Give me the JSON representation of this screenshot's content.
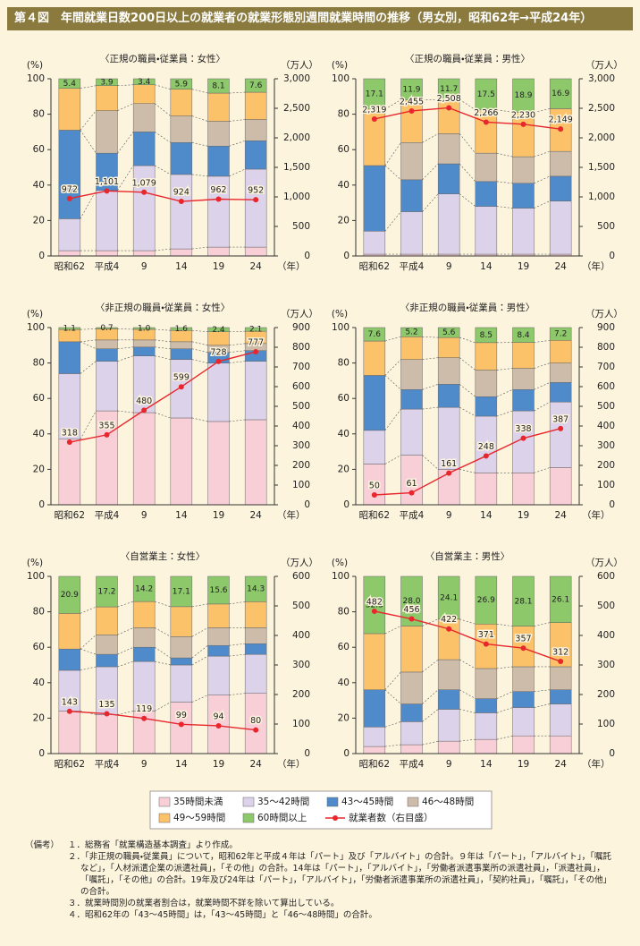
{
  "header": {
    "title": "第４図　年間就業日数200日以上の就業者の就業形態別週間就業時間の推移（男女別，昭和62年→平成24年）"
  },
  "chart_data": [
    {
      "type": "bar",
      "stacked": true,
      "subtitle": "〈正規の職員・従業員：女性〉",
      "y_label": "(%)",
      "y2_label": "（万人）",
      "x_unit": "（年）",
      "categories": [
        "昭和62",
        "平成4",
        "9",
        "14",
        "19",
        "24"
      ],
      "ylim": [
        0,
        100
      ],
      "yticks": [
        0,
        20,
        40,
        60,
        80,
        100
      ],
      "y2lim": [
        0,
        3000
      ],
      "y2ticks": [
        0,
        500,
        {
          "value": 1000,
          "label": "1,000"
        },
        {
          "value": 1500,
          "label": "1,500"
        },
        {
          "value": 2000,
          "label": "2,000"
        },
        {
          "value": 2500,
          "label": "2,500"
        },
        {
          "value": 3000,
          "label": "3,000"
        }
      ],
      "series": [
        {
          "name": "35時間未満",
          "color": "#f9cfd7",
          "values": [
            3,
            3,
            3,
            4,
            5,
            5
          ]
        },
        {
          "name": "35～42時間",
          "color": "#dcd2ea",
          "values": [
            18,
            34,
            48,
            42,
            40,
            44
          ]
        },
        {
          "name": "43～45時間",
          "color": "#4f8bcb",
          "values": [
            50,
            21,
            19,
            18,
            17,
            16
          ]
        },
        {
          "name": "46～48時間",
          "color": "#cdbca9",
          "values": [
            null,
            24,
            16,
            15,
            14,
            12
          ]
        },
        {
          "name": "49～59時間",
          "color": "#fbc26a",
          "values": [
            23.6,
            14.1,
            10.6,
            15.1,
            15.9,
            15.4
          ]
        },
        {
          "name": "60時間以上",
          "color": "#8dc86b",
          "values": [
            5.4,
            3.9,
            3.4,
            5.9,
            8.1,
            7.6
          ],
          "value_labels": [
            "5.4",
            "3.9",
            "3.4",
            "5.9",
            "8.1",
            "7.6"
          ]
        },
        {
          "name": "就業者数（右目盛）",
          "type": "line",
          "axis": "y2",
          "color": "#e8262c",
          "values": [
            972,
            1101,
            1079,
            924,
            962,
            952
          ],
          "value_labels": [
            "972",
            "1,101",
            "1,079",
            "924",
            "962",
            "952"
          ]
        }
      ]
    },
    {
      "type": "bar",
      "stacked": true,
      "subtitle": "〈正規の職員・従業員：男性〉",
      "y_label": "(%)",
      "y2_label": "（万人）",
      "x_unit": "（年）",
      "categories": [
        "昭和62",
        "平成4",
        "9",
        "14",
        "19",
        "24"
      ],
      "ylim": [
        0,
        100
      ],
      "yticks": [
        0,
        20,
        40,
        60,
        80,
        100
      ],
      "y2lim": [
        0,
        3000
      ],
      "y2ticks": [
        0,
        500,
        {
          "value": 1000,
          "label": "1,000"
        },
        {
          "value": 1500,
          "label": "1,500"
        },
        {
          "value": 2000,
          "label": "2,000"
        },
        {
          "value": 2500,
          "label": "2,500"
        },
        {
          "value": 3000,
          "label": "3,000"
        }
      ],
      "series": [
        {
          "name": "35時間未満",
          "color": "#f9cfd7",
          "values": [
            1,
            1,
            1,
            1,
            1,
            1
          ]
        },
        {
          "name": "35～42時間",
          "color": "#dcd2ea",
          "values": [
            13,
            24,
            34,
            27,
            26,
            30
          ]
        },
        {
          "name": "43～45時間",
          "color": "#4f8bcb",
          "values": [
            37,
            18,
            17,
            14,
            14,
            14
          ]
        },
        {
          "name": "46～48時間",
          "color": "#cdbca9",
          "values": [
            null,
            21,
            17,
            16,
            15,
            14
          ]
        },
        {
          "name": "49～59時間",
          "color": "#fbc26a",
          "values": [
            31.9,
            24.1,
            19.3,
            24.5,
            25.1,
            24.1
          ]
        },
        {
          "name": "60時間以上",
          "color": "#8dc86b",
          "values": [
            17.1,
            11.9,
            11.7,
            17.5,
            18.9,
            16.9
          ],
          "value_labels": [
            "17.1",
            "11.9",
            "11.7",
            "17.5",
            "18.9",
            "16.9"
          ]
        },
        {
          "name": "就業者数（右目盛）",
          "type": "line",
          "axis": "y2",
          "color": "#e8262c",
          "values": [
            2319,
            2455,
            2508,
            2266,
            2230,
            2149
          ],
          "value_labels": [
            "2,319",
            "2,455",
            "2,508",
            "2,266",
            "2,230",
            "2,149"
          ]
        }
      ]
    },
    {
      "type": "bar",
      "stacked": true,
      "subtitle": "〈非正規の職員・従業員：女性〉",
      "y_label": "(%)",
      "y2_label": "（万人）",
      "x_unit": "（年）",
      "categories": [
        "昭和62",
        "平成4",
        "9",
        "14",
        "19",
        "24"
      ],
      "ylim": [
        0,
        100
      ],
      "yticks": [
        0,
        20,
        40,
        60,
        80,
        100
      ],
      "y2lim": [
        0,
        900
      ],
      "y2ticks": [
        0,
        100,
        200,
        300,
        400,
        500,
        600,
        700,
        800,
        900
      ],
      "series": [
        {
          "name": "35時間未満",
          "color": "#f9cfd7",
          "values": [
            37,
            53,
            52,
            49,
            47,
            48
          ]
        },
        {
          "name": "35～42時間",
          "color": "#dcd2ea",
          "values": [
            37,
            28,
            32,
            33,
            33,
            33
          ]
        },
        {
          "name": "43～45時間",
          "color": "#4f8bcb",
          "values": [
            18,
            7,
            5,
            6,
            6,
            6
          ]
        },
        {
          "name": "46～48時間",
          "color": "#cdbca9",
          "values": [
            null,
            5,
            4,
            4,
            4,
            4
          ]
        },
        {
          "name": "49～59時間",
          "color": "#fbc26a",
          "values": [
            6.9,
            6.3,
            6,
            6.4,
            7.6,
            6.9
          ]
        },
        {
          "name": "60時間以上",
          "color": "#8dc86b",
          "values": [
            1.1,
            0.7,
            1.0,
            1.6,
            2.4,
            2.1
          ],
          "value_labels": [
            "1.1",
            "0.7",
            "1.0",
            "1.6",
            "2.4",
            "2.1"
          ]
        },
        {
          "name": "就業者数（右目盛）",
          "type": "line",
          "axis": "y2",
          "color": "#e8262c",
          "values": [
            318,
            355,
            480,
            599,
            728,
            777
          ],
          "value_labels": [
            "318",
            "355",
            "480",
            "599",
            "728",
            "777"
          ]
        }
      ]
    },
    {
      "type": "bar",
      "stacked": true,
      "subtitle": "〈非正規の職員・従業員：男性〉",
      "y_label": "(%)",
      "y2_label": "（万人）",
      "x_unit": "（年）",
      "categories": [
        "昭和62",
        "平成4",
        "9",
        "14",
        "19",
        "24"
      ],
      "ylim": [
        0,
        100
      ],
      "yticks": [
        0,
        20,
        40,
        60,
        80,
        100
      ],
      "y2lim": [
        0,
        900
      ],
      "y2ticks": [
        0,
        100,
        200,
        300,
        400,
        500,
        600,
        700,
        800,
        900
      ],
      "series": [
        {
          "name": "35時間未満",
          "color": "#f9cfd7",
          "values": [
            23,
            28,
            20,
            18,
            18,
            21
          ]
        },
        {
          "name": "35～42時間",
          "color": "#dcd2ea",
          "values": [
            19,
            26,
            35,
            32,
            35,
            37
          ]
        },
        {
          "name": "43～45時間",
          "color": "#4f8bcb",
          "values": [
            31,
            11,
            13,
            11,
            12,
            11
          ]
        },
        {
          "name": "46～48時間",
          "color": "#cdbca9",
          "values": [
            null,
            17,
            15,
            15,
            12,
            11
          ]
        },
        {
          "name": "49～59時間",
          "color": "#fbc26a",
          "values": [
            19.4,
            12.8,
            11.4,
            15.5,
            14.6,
            12.8
          ]
        },
        {
          "name": "60時間以上",
          "color": "#8dc86b",
          "values": [
            7.6,
            5.2,
            5.6,
            8.5,
            8.4,
            7.2
          ],
          "value_labels": [
            "7.6",
            "5.2",
            "5.6",
            "8.5",
            "8.4",
            "7.2"
          ]
        },
        {
          "name": "就業者数（右目盛）",
          "type": "line",
          "axis": "y2",
          "color": "#e8262c",
          "values": [
            50,
            61,
            161,
            248,
            338,
            387
          ],
          "value_labels": [
            "50",
            "61",
            "161",
            "248",
            "338",
            "387"
          ]
        }
      ]
    },
    {
      "type": "bar",
      "stacked": true,
      "subtitle": "〈自営業主：女性〉",
      "y_label": "(%)",
      "y2_label": "（万人）",
      "x_unit": "（年）",
      "categories": [
        "昭和62",
        "平成4",
        "9",
        "14",
        "19",
        "24"
      ],
      "ylim": [
        0,
        100
      ],
      "yticks": [
        0,
        20,
        40,
        60,
        80,
        100
      ],
      "y2lim": [
        0,
        600
      ],
      "y2ticks": [
        0,
        100,
        200,
        300,
        400,
        500,
        600
      ],
      "series": [
        {
          "name": "35時間未満",
          "color": "#f9cfd7",
          "values": [
            24,
            22,
            24,
            29,
            33,
            34
          ]
        },
        {
          "name": "35～42時間",
          "color": "#dcd2ea",
          "values": [
            23,
            27,
            28,
            21,
            22,
            22
          ]
        },
        {
          "name": "43～45時間",
          "color": "#4f8bcb",
          "values": [
            12,
            7,
            8,
            4,
            6,
            6
          ]
        },
        {
          "name": "46～48時間",
          "color": "#cdbca9",
          "values": [
            null,
            11,
            11,
            12,
            10,
            9
          ]
        },
        {
          "name": "49～59時間",
          "color": "#fbc26a",
          "values": [
            20.1,
            15.8,
            14.8,
            16.9,
            13.4,
            14.7
          ]
        },
        {
          "name": "60時間以上",
          "color": "#8dc86b",
          "values": [
            20.9,
            17.2,
            14.2,
            17.1,
            15.6,
            14.3
          ],
          "value_labels": [
            "20.9",
            "17.2",
            "14.2",
            "17.1",
            "15.6",
            "14.3"
          ]
        },
        {
          "name": "就業者数（右目盛）",
          "type": "line",
          "axis": "y2",
          "color": "#e8262c",
          "values": [
            143,
            135,
            119,
            99,
            94,
            80
          ],
          "value_labels": [
            "143",
            "135",
            "119",
            "99",
            "94",
            "80"
          ]
        }
      ]
    },
    {
      "type": "bar",
      "stacked": true,
      "subtitle": "〈自営業主：男性〉",
      "y_label": "(%)",
      "y2_label": "（万人）",
      "x_unit": "（年）",
      "categories": [
        "昭和62",
        "平成4",
        "9",
        "14",
        "19",
        "24"
      ],
      "ylim": [
        0,
        100
      ],
      "yticks": [
        0,
        20,
        40,
        60,
        80,
        100
      ],
      "y2lim": [
        0,
        600
      ],
      "y2ticks": [
        0,
        100,
        200,
        300,
        400,
        500,
        600
      ],
      "series": [
        {
          "name": "35時間未満",
          "color": "#f9cfd7",
          "values": [
            4,
            5,
            7,
            8,
            10,
            10
          ]
        },
        {
          "name": "35～42時間",
          "color": "#dcd2ea",
          "values": [
            11,
            13,
            18,
            15,
            16,
            18
          ]
        },
        {
          "name": "43～45時間",
          "color": "#4f8bcb",
          "values": [
            21,
            10,
            11,
            8,
            9,
            8
          ]
        },
        {
          "name": "46～48時間",
          "color": "#cdbca9",
          "values": [
            null,
            18,
            17,
            17,
            14,
            13
          ]
        },
        {
          "name": "49～59時間",
          "color": "#fbc26a",
          "values": [
            31.7,
            26,
            22.9,
            25.1,
            22.9,
            24.9
          ]
        },
        {
          "name": "60時間以上",
          "color": "#8dc86b",
          "values": [
            32.3,
            28.0,
            24.1,
            26.9,
            28.1,
            26.1
          ],
          "value_labels": [
            "32.3",
            "28.0",
            "24.1",
            "26.9",
            "28.1",
            "26.1"
          ]
        },
        {
          "name": "就業者数（右目盛）",
          "type": "line",
          "axis": "y2",
          "color": "#e8262c",
          "values": [
            482,
            456,
            422,
            371,
            357,
            312
          ],
          "value_labels": [
            "482",
            "456",
            "422",
            "371",
            "357",
            "312"
          ]
        }
      ]
    }
  ],
  "notes": {
    "label": "（備考）",
    "items": [
      "１．総務省「就業構造基本調査」より作成。",
      "２．「非正規の職員・従業員」について，昭和62年と平成４年は「パート」及び「アルバイト」の合計。９年は「パート」，「アルバイト」，「嘱託など」，「人材派遣企業の派遣社員」，「その他」の合計。14年は「パート」，「アルバイト」，「労働者派遣事業所の派遣社員」，「派遣社員」，「嘱託」，「その他」の合計。19年及び24年は「パート」，「アルバイト」，「労働者派遣事業所の派遣社員」，「契約社員」，「嘱託」，「その他」の合計。",
      "３．就業時間別の就業者割合は，就業時間不詳を除いて算出している。",
      "４．昭和62年の「43～45時間」は，「43～45時間」と「46～48時間」の合計。"
    ]
  }
}
